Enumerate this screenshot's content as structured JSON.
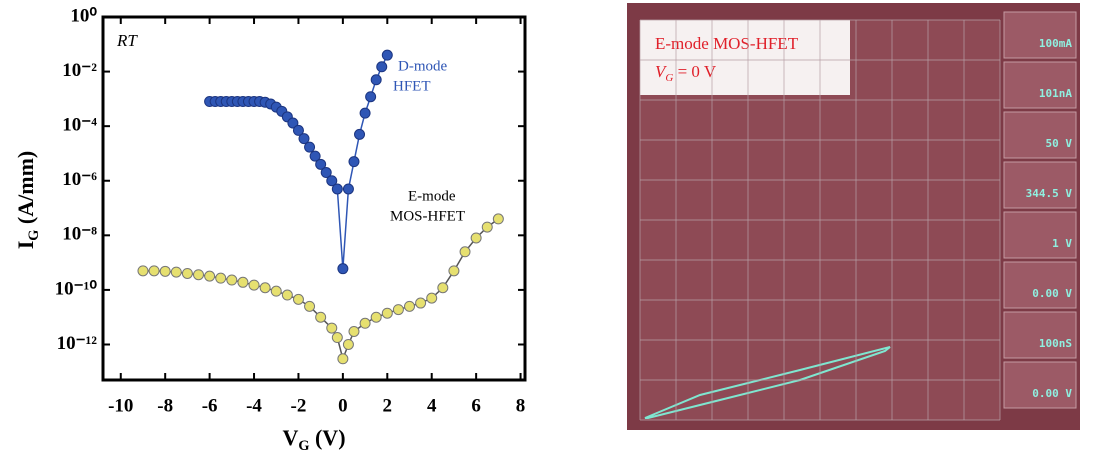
{
  "chart_data": {
    "type": "scatter-line",
    "log_y": true,
    "xlabel": {
      "main": "V",
      "sub": "G",
      "rest": " (V)"
    },
    "ylabel": {
      "main": "I",
      "sub": "G",
      "rest": " (A/mm)"
    },
    "annotations": {
      "rt": "RT",
      "d_mode": [
        "D-mode",
        "HFET"
      ],
      "e_mode": [
        "E-mode",
        "MOS-HFET"
      ]
    },
    "xlim": [
      -10.8,
      8.2
    ],
    "ylim": [
      5e-14,
      1
    ],
    "xticks": [
      -10,
      -8,
      -6,
      -4,
      -2,
      0,
      2,
      4,
      6,
      8
    ],
    "yticks": [
      {
        "value": 1,
        "label": "10⁰"
      },
      {
        "value": 0.01,
        "label": "10⁻²"
      },
      {
        "value": 0.0001,
        "label": "10⁻⁴"
      },
      {
        "value": 1e-06,
        "label": "10⁻⁶"
      },
      {
        "value": 1e-08,
        "label": "10⁻⁸"
      },
      {
        "value": 1e-10,
        "label": "10⁻¹⁰"
      },
      {
        "value": 1e-12,
        "label": "10⁻¹²"
      }
    ],
    "series": [
      {
        "color": "#2f56b5",
        "x": [
          -6,
          -5.75,
          -5.5,
          -5.25,
          -5,
          -4.75,
          -4.5,
          -4.25,
          -4,
          -3.75,
          -3.5,
          -3.25,
          -3,
          -2.75,
          -2.5,
          -2.25,
          -2,
          -1.75,
          -1.5,
          -1.25,
          -1,
          -0.75,
          -0.5,
          -0.25,
          0,
          0.25,
          0.5,
          0.75,
          1,
          1.25,
          1.5,
          1.75,
          2
        ],
        "values": [
          0.0008,
          0.0008,
          0.0008,
          0.0008,
          0.0008,
          0.0008,
          0.0008,
          0.0008,
          0.0008,
          0.0008,
          0.00075,
          0.00065,
          0.0005,
          0.00035,
          0.00022,
          0.00013,
          7e-05,
          3.5e-05,
          1.7e-05,
          8e-06,
          4e-06,
          2e-06,
          1e-06,
          5e-07,
          6e-10,
          5e-07,
          5e-06,
          5e-05,
          0.0003,
          0.0012,
          0.005,
          0.015,
          0.04
        ]
      },
      {
        "color": "#e6e070",
        "x": [
          -9,
          -8.5,
          -8,
          -7.5,
          -7,
          -6.5,
          -6,
          -5.5,
          -5,
          -4.5,
          -4,
          -3.5,
          -3,
          -2.5,
          -2,
          -1.5,
          -1,
          -0.5,
          -0.25,
          0,
          0.25,
          0.5,
          1,
          1.5,
          2,
          2.5,
          3,
          3.5,
          4,
          4.5,
          5,
          5.5,
          6,
          6.5,
          7
        ],
        "values": [
          5e-10,
          5e-10,
          4.8e-10,
          4.5e-10,
          4e-10,
          3.6e-10,
          3.2e-10,
          2.7e-10,
          2.3e-10,
          1.9e-10,
          1.5e-10,
          1.2e-10,
          9e-11,
          6.5e-11,
          4.5e-11,
          2.5e-11,
          1e-11,
          4e-12,
          1.8e-12,
          3e-13,
          1e-12,
          3e-12,
          6e-12,
          1e-11,
          1.4e-11,
          1.9e-11,
          2.5e-11,
          3.3e-11,
          5e-11,
          1.2e-10,
          5e-10,
          2.5e-09,
          8e-09,
          2e-08,
          4e-08
        ]
      }
    ]
  },
  "photo": {
    "caption": "E-mode MOS-HFET",
    "vg": {
      "main": "V",
      "sub": "G",
      "rest": " = 0 V"
    },
    "readouts": [
      "100mA",
      "101nA",
      "50 V",
      "344.5 V",
      "1 V",
      "0.00 V",
      "100nS",
      "0.00 V"
    ]
  }
}
